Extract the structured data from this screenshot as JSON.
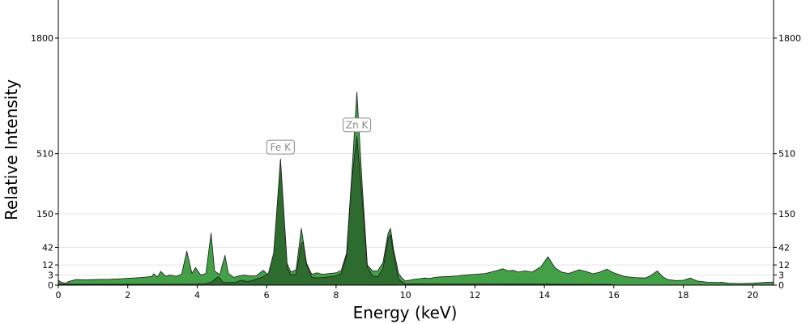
{
  "chart_data": {
    "type": "area",
    "xlabel": "Energy (keV)",
    "ylabel": "Relative Intensity",
    "xlim": [
      0,
      20.6
    ],
    "x_ticks": [
      0,
      2,
      4,
      6,
      8,
      10,
      12,
      14,
      16,
      18,
      20
    ],
    "y_scale": "sqrt",
    "ylim": [
      0,
      4500
    ],
    "y_ticks": [
      0,
      3,
      12,
      42,
      150,
      510,
      1800
    ],
    "grid": true,
    "right_axis": true,
    "colors": {
      "spectrum_a": "#43a047",
      "spectrum_b": "#2e6b2e",
      "outline": "#1a1a1a",
      "grid": "#e5e5e5"
    },
    "series": [
      {
        "key": "spectrum_a",
        "x": [
          0.0,
          0.1,
          0.2,
          0.3,
          0.5,
          0.8,
          1.0,
          1.5,
          1.8,
          2.0,
          2.2,
          2.5,
          2.7,
          2.75,
          2.85,
          2.95,
          3.1,
          3.2,
          3.4,
          3.55,
          3.7,
          3.85,
          3.95,
          4.1,
          4.25,
          4.4,
          4.5,
          4.65,
          4.8,
          4.9,
          5.05,
          5.2,
          5.35,
          5.5,
          5.7,
          5.9,
          6.05,
          6.2,
          6.3,
          6.4,
          6.55,
          6.7,
          6.85,
          7.0,
          7.05,
          7.15,
          7.3,
          7.45,
          7.6,
          7.8,
          8.0,
          8.15,
          8.3,
          8.45,
          8.6,
          8.75,
          8.9,
          9.05,
          9.2,
          9.35,
          9.5,
          9.57,
          9.65,
          9.8,
          9.9,
          10.0,
          10.2,
          10.4,
          10.55,
          10.7,
          10.85,
          11.0,
          11.3,
          11.5,
          11.7,
          12.0,
          12.3,
          12.6,
          12.8,
          12.95,
          13.1,
          13.25,
          13.45,
          13.65,
          13.9,
          14.1,
          14.3,
          14.5,
          14.7,
          15.0,
          15.2,
          15.4,
          15.6,
          15.8,
          16.0,
          16.3,
          16.6,
          16.9,
          17.05,
          17.25,
          17.4,
          17.55,
          17.8,
          18.0,
          18.2,
          18.4,
          18.7,
          19.0,
          19.1,
          19.3,
          19.6,
          20.0,
          20.3,
          20.6
        ],
        "y": [
          0.7,
          0.2,
          0.1,
          0.4,
          0.9,
          0.85,
          0.9,
          1.0,
          1.2,
          1.4,
          1.5,
          1.9,
          2.2,
          3.8,
          1.9,
          5.5,
          2.2,
          3.0,
          2.3,
          3.5,
          34,
          4.0,
          9.0,
          3.0,
          4.0,
          80,
          6.0,
          3.2,
          26,
          4.0,
          1.8,
          2.5,
          3.0,
          2.5,
          2.5,
          6.5,
          3.0,
          7.0,
          30,
          360,
          18,
          5.0,
          7.0,
          95,
          60,
          14,
          3.5,
          4.5,
          3.5,
          4.0,
          4.5,
          6.5,
          30,
          350,
          1100,
          300,
          12,
          6.0,
          6.0,
          15,
          80,
          95,
          40,
          4.0,
          1.4,
          0.5,
          0.9,
          1.2,
          1.5,
          1.3,
          1.8,
          2.0,
          2.2,
          2.5,
          3.0,
          3.5,
          4.0,
          6.0,
          8.0,
          6.0,
          6.5,
          5.0,
          6.0,
          5.0,
          10,
          24,
          9.0,
          5.0,
          4.0,
          7.0,
          5.5,
          3.8,
          5.0,
          7.5,
          4.5,
          2.2,
          1.7,
          1.5,
          2.5,
          6.0,
          2.2,
          0.9,
          0.6,
          0.7,
          1.5,
          0.5,
          0.25,
          0.2,
          0.25,
          0.1,
          0.08,
          0.1,
          0.2,
          0.3
        ]
      },
      {
        "key": "spectrum_b",
        "x": [
          0.0,
          4.0,
          4.2,
          4.4,
          4.55,
          4.6,
          4.65,
          4.75,
          4.9,
          5.1,
          5.2,
          5.3,
          5.4,
          5.55,
          5.7,
          5.9,
          6.05,
          6.2,
          6.3,
          6.4,
          6.5,
          6.6,
          6.7,
          6.85,
          7.0,
          7.05,
          7.15,
          7.3,
          7.45,
          7.6,
          7.8,
          8.0,
          8.15,
          8.3,
          8.45,
          8.6,
          8.75,
          8.9,
          9.05,
          9.2,
          9.35,
          9.5,
          9.57,
          9.65,
          9.8,
          9.9,
          10.0,
          11.0,
          12.0,
          13.0,
          14.0,
          15.0,
          15.9,
          16.0
        ],
        "y": [
          0.02,
          0.03,
          0.05,
          0.2,
          1.5,
          2.0,
          1.5,
          0.2,
          0.2,
          0.2,
          0.5,
          0.7,
          0.4,
          0.5,
          1.0,
          2.0,
          4.0,
          30,
          180,
          470,
          150,
          8.0,
          3.0,
          3.5,
          50,
          55,
          12,
          1.8,
          1.5,
          1.7,
          2.0,
          2.5,
          4.0,
          25,
          330,
          650,
          220,
          10,
          2.5,
          2.0,
          8.0,
          65,
          75,
          30,
          1.0,
          0.3,
          0.05,
          0.04,
          0.04,
          0.03,
          0.03,
          0.02,
          0.02,
          0.0
        ]
      }
    ],
    "annotations": [
      {
        "text": "Fe K",
        "x": 6.4,
        "y": 470
      },
      {
        "text": "Zn K",
        "x": 8.6,
        "y": 650
      }
    ]
  }
}
